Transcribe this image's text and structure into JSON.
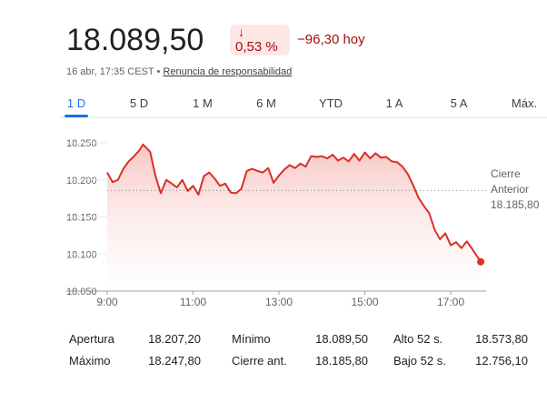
{
  "header": {
    "price": "18.089,50",
    "change_arrow": "↓",
    "change_percent": "0,53 %",
    "change_abs": "−96,30 hoy",
    "date": "16 abr, 17:35 CEST",
    "separator": "•",
    "disclaimer": "Renuncia de responsabilidad"
  },
  "tabs": {
    "items": [
      "1 D",
      "5 D",
      "1 M",
      "6 M",
      "YTD",
      "1 A",
      "5 A",
      "Máx."
    ],
    "selected": 0
  },
  "chart_data": {
    "type": "line",
    "color": "#d93025",
    "x": [
      9.0,
      9.125,
      9.25,
      9.375,
      9.5,
      9.625,
      9.75,
      9.833,
      10.0,
      10.125,
      10.25,
      10.375,
      10.5,
      10.625,
      10.75,
      10.875,
      11.0,
      11.125,
      11.25,
      11.375,
      11.5,
      11.625,
      11.75,
      11.875,
      12.0,
      12.125,
      12.25,
      12.375,
      12.5,
      12.625,
      12.75,
      12.875,
      13.0,
      13.125,
      13.25,
      13.375,
      13.5,
      13.625,
      13.75,
      13.875,
      14.0,
      14.125,
      14.25,
      14.375,
      14.5,
      14.625,
      14.75,
      14.875,
      15.0,
      15.125,
      15.25,
      15.375,
      15.5,
      15.625,
      15.75,
      15.875,
      16.0,
      16.125,
      16.25,
      16.375,
      16.5,
      16.625,
      16.75,
      16.875,
      17.0,
      17.125,
      17.25,
      17.375,
      17.5,
      17.625,
      17.7
    ],
    "values": [
      18210,
      18197,
      18200,
      18215,
      18225,
      18232,
      18240,
      18247.8,
      18238,
      18205,
      18182,
      18200,
      18195,
      18190,
      18200,
      18185,
      18192,
      18180,
      18205,
      18210,
      18202,
      18192,
      18195,
      18183,
      18182,
      18188,
      18212,
      18215,
      18212,
      18210,
      18216,
      18196,
      18206,
      18214,
      18220,
      18216,
      18222,
      18218,
      18232,
      18231,
      18232,
      18229,
      18234,
      18226,
      18230,
      18225,
      18235,
      18226,
      18237,
      18229,
      18236,
      18230,
      18231,
      18225,
      18224,
      18218,
      18208,
      18193,
      18176,
      18165,
      18155,
      18133,
      18120,
      18128,
      18112,
      18116,
      18108,
      18117,
      18107,
      18096,
      18089.5
    ],
    "xlim": [
      9,
      17.83
    ],
    "xticks": [
      {
        "value": 9,
        "label": "9:00"
      },
      {
        "value": 11,
        "label": "11:00"
      },
      {
        "value": 13,
        "label": "13:00"
      },
      {
        "value": 15,
        "label": "15:00"
      },
      {
        "value": 17,
        "label": "17:00"
      }
    ],
    "ylim": [
      18050,
      18250
    ],
    "yticks": [
      {
        "value": 18050,
        "label": "18.050"
      },
      {
        "value": 18100,
        "label": "18.100"
      },
      {
        "value": 18150,
        "label": "18.150"
      },
      {
        "value": 18200,
        "label": "18.200"
      },
      {
        "value": 18250,
        "label": "18.250"
      }
    ],
    "grid": true,
    "reference_line": {
      "label_lines": [
        "Cierre",
        "Anterior"
      ],
      "value": 18185.8,
      "value_label": "18.185,80"
    }
  },
  "table": {
    "rows": [
      [
        "Apertura",
        "18.207,20",
        "Mínimo",
        "18.089,50",
        "Alto 52 s.",
        "18.573,80"
      ],
      [
        "Máximo",
        "18.247,80",
        "Cierre ant.",
        "18.185,80",
        "Bajo 52 s.",
        "12.756,10"
      ]
    ]
  }
}
